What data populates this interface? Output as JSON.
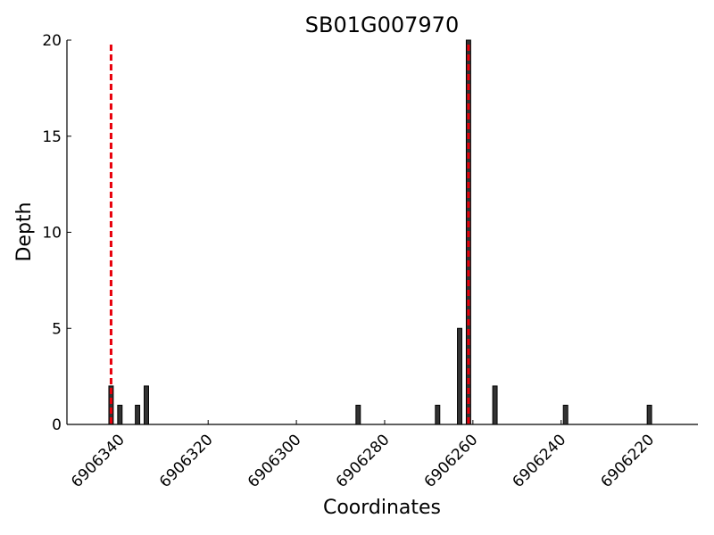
{
  "chart_data": {
    "type": "bar",
    "title": "SB01G007970",
    "x_label": "Coordinates",
    "y_label": "Depth",
    "x": [
      6906342,
      6906340,
      6906336,
      6906334,
      6906286,
      6906268,
      6906263,
      6906261,
      6906255,
      6906239,
      6906220
    ],
    "values": [
      2,
      1,
      1,
      2,
      1,
      1,
      5,
      20,
      2,
      1,
      1
    ],
    "color": "#333333",
    "markers": [
      6906342,
      6906261
    ],
    "marker_color": "#e8000b",
    "xlim": [
      6906352,
      6906209
    ],
    "xticks": [
      6906340,
      6906320,
      6906300,
      6906280,
      6906260,
      6906240,
      6906220
    ],
    "ylim": [
      0,
      20
    ],
    "yticks": [
      0,
      5,
      10,
      15,
      20
    ]
  }
}
